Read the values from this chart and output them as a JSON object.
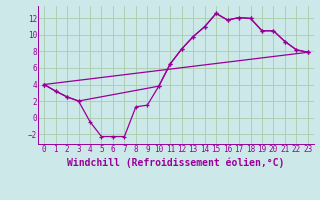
{
  "xlabel": "Windchill (Refroidissement éolien,°C)",
  "background_color": "#cce8e8",
  "grid_color": "#aaccaa",
  "line_color": "#990099",
  "xlim": [
    -0.5,
    23.5
  ],
  "ylim": [
    -3.2,
    13.5
  ],
  "xticks": [
    0,
    1,
    2,
    3,
    4,
    5,
    6,
    7,
    8,
    9,
    10,
    11,
    12,
    13,
    14,
    15,
    16,
    17,
    18,
    19,
    20,
    21,
    22,
    23
  ],
  "yticks": [
    -2,
    0,
    2,
    4,
    6,
    8,
    10,
    12
  ],
  "line1_x": [
    0,
    1,
    2,
    3,
    4,
    5,
    6,
    7,
    8,
    9,
    10,
    11,
    12,
    13,
    14,
    15,
    16,
    17,
    18,
    19,
    20,
    21,
    22,
    23
  ],
  "line1_y": [
    4.0,
    3.2,
    2.5,
    2.0,
    -0.5,
    -2.3,
    -2.3,
    -2.3,
    1.3,
    1.5,
    3.8,
    6.5,
    8.3,
    9.8,
    11.0,
    12.6,
    11.8,
    12.1,
    12.0,
    10.5,
    10.5,
    9.2,
    8.2,
    7.9
  ],
  "line2_x": [
    0,
    1,
    2,
    3,
    10,
    11,
    12,
    13,
    14,
    15,
    16,
    17,
    18,
    19,
    20,
    21,
    22,
    23
  ],
  "line2_y": [
    4.0,
    3.2,
    2.5,
    2.0,
    3.8,
    6.5,
    8.3,
    9.8,
    11.0,
    12.6,
    11.8,
    12.1,
    12.0,
    10.5,
    10.5,
    9.2,
    8.2,
    7.9
  ],
  "line3_x": [
    0,
    23
  ],
  "line3_y": [
    4.0,
    7.9
  ],
  "font_color": "#990099",
  "tick_fontsize": 5.5,
  "label_fontsize": 7.0
}
